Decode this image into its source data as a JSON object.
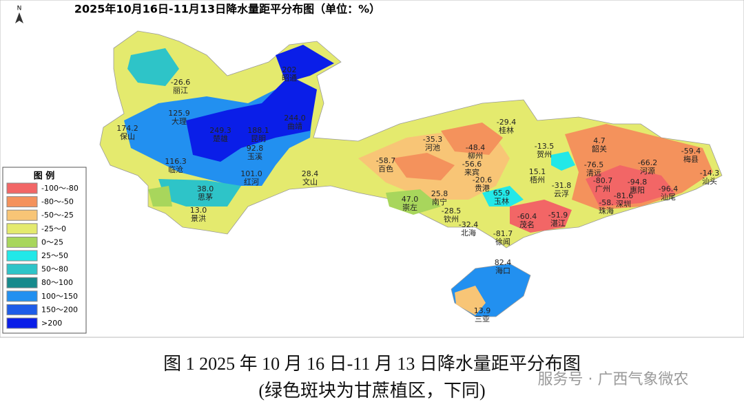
{
  "header": {
    "title": "2025年10月16日-11月13日降水量距平分布图（单位：%）",
    "north": "N"
  },
  "legend": {
    "title": "图    例",
    "items": [
      {
        "label": "-100～-80",
        "color": "#f26666"
      },
      {
        "label": "-80～-50",
        "color": "#f4925c"
      },
      {
        "label": "-50～-25",
        "color": "#f8c576"
      },
      {
        "label": "-25～0",
        "color": "#e4ea6e"
      },
      {
        "label": "0～25",
        "color": "#a8d65c"
      },
      {
        "label": "25～50",
        "color": "#22e8e8"
      },
      {
        "label": "50～80",
        "color": "#2ec4c8"
      },
      {
        "label": "80～100",
        "color": "#168a8c"
      },
      {
        "label": "100～150",
        "color": "#2290f0"
      },
      {
        "label": "150～200",
        "color": "#1e5ce8"
      },
      {
        "label": ">200",
        "color": "#0a1ee8"
      }
    ]
  },
  "stations": [
    {
      "value": "-26.6",
      "name": "丽江"
    },
    {
      "value": "202",
      "name": "昭通"
    },
    {
      "value": "125.9",
      "name": "大理"
    },
    {
      "value": "174.2",
      "name": "保山"
    },
    {
      "value": "249.3",
      "name": "楚雄"
    },
    {
      "value": "188.1",
      "name": "昆明"
    },
    {
      "value": "244.0",
      "name": "曲靖"
    },
    {
      "value": "92.8",
      "name": "玉溪"
    },
    {
      "value": "116.3",
      "name": "临沧"
    },
    {
      "value": "101.0",
      "name": "红河"
    },
    {
      "value": "28.4",
      "name": "文山"
    },
    {
      "value": "38.0",
      "name": "思茅"
    },
    {
      "value": "13.0",
      "name": "景洪"
    },
    {
      "value": "-58.7",
      "name": "百色"
    },
    {
      "value": "-35.3",
      "name": "河池"
    },
    {
      "value": "-48.4",
      "name": "柳州"
    },
    {
      "value": "-56.6",
      "name": "来宾"
    },
    {
      "value": "-20.6",
      "name": "贵港"
    },
    {
      "value": "-29.4",
      "name": "桂林"
    },
    {
      "value": "-13.5",
      "name": "贺州"
    },
    {
      "value": "15.1",
      "name": "梧州"
    },
    {
      "value": "65.9",
      "name": "玉林"
    },
    {
      "value": "25.8",
      "name": "南宁"
    },
    {
      "value": "47.0",
      "name": "崇左"
    },
    {
      "value": "-28.5",
      "name": "钦州"
    },
    {
      "value": "-32.4",
      "name": "北海"
    },
    {
      "value": "-60.4",
      "name": "茂名"
    },
    {
      "value": "-51.9",
      "name": "湛江"
    },
    {
      "value": "-31.8",
      "name": "云浮"
    },
    {
      "value": "4.7",
      "name": "韶关"
    },
    {
      "value": "-76.5",
      "name": "清远"
    },
    {
      "value": "-66.2",
      "name": "河源"
    },
    {
      "value": "-59.4",
      "name": "梅县"
    },
    {
      "value": "-14.3",
      "name": "汕头"
    },
    {
      "value": "-80.7",
      "name": "广州"
    },
    {
      "value": "-94.8",
      "name": "惠阳"
    },
    {
      "value": "-81.6",
      "name": "深圳"
    },
    {
      "value": "-96.4",
      "name": "汕尾"
    },
    {
      "value": "-58.",
      "name": "珠海"
    },
    {
      "value": "-81.7",
      "name": "徐闻"
    },
    {
      "value": "82.4",
      "name": "海口"
    },
    {
      "value": "13.9",
      "name": "三亚"
    }
  ],
  "caption": {
    "line1": "图 1 2025 年 10 月 16 日-11 月 13 日降水量距平分布图",
    "line2": "(绿色斑块为甘蔗植区，下同)"
  },
  "watermark": "服务号 · 广西气象微农"
}
